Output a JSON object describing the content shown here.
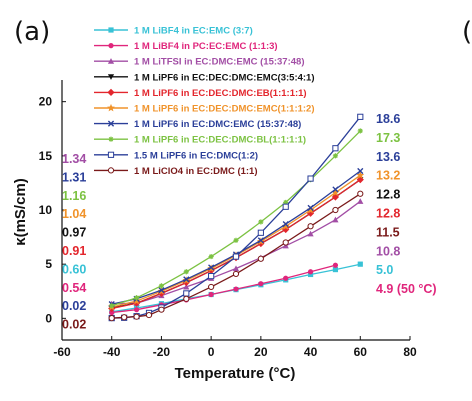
{
  "figure": {
    "panel_label": "(a)",
    "next_panel_label": "("
  },
  "chart_data": {
    "type": "line",
    "title": "",
    "xlabel": "Temperature (°C)",
    "ylabel": "κ(mS/cm)",
    "xlim": [
      -60,
      80
    ],
    "ylim": [
      -2,
      22
    ],
    "xticks": [
      -60,
      -40,
      -20,
      0,
      20,
      40,
      60,
      80
    ],
    "yticks": [
      0,
      5,
      10,
      15,
      20
    ],
    "grid": false,
    "legend_position": "top-left",
    "series": [
      {
        "name": "1 M LiBF4 in EC:EMC (3:7)",
        "color": "#38c2d6",
        "marker": "square-filled",
        "x": [
          -40,
          -30,
          -20,
          -10,
          0,
          10,
          20,
          30,
          40,
          50,
          60
        ],
        "y": [
          0.6,
          0.95,
          1.35,
          1.8,
          2.2,
          2.65,
          3.1,
          3.55,
          4.05,
          4.5,
          5.0
        ]
      },
      {
        "name": "1 M LiBF4 in PC:EC:EMC (1:1:3)",
        "color": "#e0267c",
        "marker": "circle-filled",
        "x": [
          -40,
          -30,
          -20,
          -10,
          0,
          10,
          20,
          30,
          40,
          50
        ],
        "y": [
          0.54,
          0.8,
          1.25,
          1.7,
          2.2,
          2.7,
          3.2,
          3.7,
          4.3,
          4.9
        ]
      },
      {
        "name": "1 M LiTFSI in EC:DMC:EMC (15:37:48)",
        "color": "#a24ea5",
        "marker": "triangle-filled",
        "x": [
          -40,
          -30,
          -20,
          -10,
          0,
          10,
          20,
          30,
          40,
          50,
          60
        ],
        "y": [
          1.34,
          1.4,
          2.1,
          2.9,
          3.7,
          4.6,
          5.6,
          6.7,
          7.8,
          9.1,
          10.8
        ]
      },
      {
        "name": "1 M LiPF6 in EC:DEC:DMC:EMC(3:5:4:1)",
        "color": "#111111",
        "marker": "triangle-down-filled",
        "x": [
          -40,
          -30,
          -20,
          -10,
          0,
          10,
          20,
          30,
          40,
          50,
          60
        ],
        "y": [
          0.97,
          1.4,
          2.3,
          3.3,
          4.4,
          5.6,
          6.9,
          8.2,
          9.7,
          11.2,
          12.8
        ]
      },
      {
        "name": "1 M LiPF6 in EC:DEC:DMC:EB(1:1:1:1)",
        "color": "#e3262d",
        "marker": "diamond-filled",
        "x": [
          -40,
          -30,
          -20,
          -10,
          0,
          10,
          20,
          30,
          40,
          50,
          60
        ],
        "y": [
          0.91,
          1.4,
          2.3,
          3.3,
          4.4,
          5.6,
          6.9,
          8.2,
          9.7,
          11.2,
          12.8
        ]
      },
      {
        "name": "1 M LiPF6 in EC:DEC:DMC:EMC(1:1:1:2)",
        "color": "#f0932b",
        "marker": "star",
        "x": [
          -40,
          -30,
          -20,
          -10,
          0,
          10,
          20,
          30,
          40,
          50,
          60
        ],
        "y": [
          1.04,
          1.6,
          2.5,
          3.5,
          4.6,
          5.8,
          7.1,
          8.5,
          10.0,
          11.6,
          13.2
        ]
      },
      {
        "name": "1 M LiPF6 in EC:DMC:EMC (15:37:48)",
        "color": "#2b3f99",
        "marker": "cross",
        "x": [
          -40,
          -30,
          -20,
          -10,
          0,
          10,
          20,
          30,
          40,
          50,
          60
        ],
        "y": [
          1.31,
          1.8,
          2.6,
          3.6,
          4.7,
          5.9,
          7.2,
          8.7,
          10.2,
          11.9,
          13.6
        ]
      },
      {
        "name": "1 M LiPF6 in EC:DEC:DMC:BL(1:1:1:1)",
        "color": "#7cc242",
        "marker": "x-mark",
        "x": [
          -40,
          -30,
          -20,
          -10,
          0,
          10,
          20,
          30,
          40,
          50,
          60
        ],
        "y": [
          1.16,
          1.9,
          3.0,
          4.3,
          5.7,
          7.2,
          8.9,
          10.7,
          12.8,
          15.0,
          17.3
        ]
      },
      {
        "name": "1.5 M LiPF6 in EC:DMC(1:2)",
        "color": "#2b3f99",
        "marker": "square-open",
        "x": [
          -40,
          -35,
          -30,
          -25,
          -20,
          -10,
          0,
          10,
          20,
          30,
          40,
          50,
          60
        ],
        "y": [
          0.02,
          0.05,
          0.2,
          0.5,
          1.0,
          2.3,
          3.9,
          5.7,
          7.9,
          10.3,
          12.9,
          15.7,
          18.6
        ]
      },
      {
        "name": "1 M LiClO4 in EC:DMC (1:1)",
        "color": "#7a1a1a",
        "marker": "circle-open",
        "x": [
          -40,
          -35,
          -30,
          -25,
          -20,
          -10,
          0,
          10,
          20,
          30,
          40,
          50,
          60
        ],
        "y": [
          0.02,
          0.1,
          0.15,
          0.3,
          0.8,
          1.8,
          2.9,
          4.1,
          5.5,
          7.0,
          8.5,
          10.0,
          11.5
        ]
      }
    ],
    "left_labels": [
      {
        "text": "1.34",
        "color": "#a24ea5"
      },
      {
        "text": "1.31",
        "color": "#2b3f99"
      },
      {
        "text": "1.16",
        "color": "#7cc242"
      },
      {
        "text": "1.04",
        "color": "#f0932b"
      },
      {
        "text": "0.97",
        "color": "#111111"
      },
      {
        "text": "0.91",
        "color": "#e3262d"
      },
      {
        "text": "0.60",
        "color": "#38c2d6"
      },
      {
        "text": "0.54",
        "color": "#e0267c"
      },
      {
        "text": "0.02",
        "color": "#2b3f99"
      },
      {
        "text": "0.02",
        "color": "#7a1a1a"
      }
    ],
    "right_labels": [
      {
        "text": "18.6",
        "color": "#2b3f99"
      },
      {
        "text": "17.3",
        "color": "#7cc242"
      },
      {
        "text": "13.6",
        "color": "#2b3f99"
      },
      {
        "text": "13.2",
        "color": "#f0932b"
      },
      {
        "text": "12.8",
        "color": "#111111"
      },
      {
        "text": "12.8",
        "color": "#e3262d"
      },
      {
        "text": "11.5",
        "color": "#7a1a1a"
      },
      {
        "text": "10.8",
        "color": "#a24ea5"
      },
      {
        "text": "5.0",
        "color": "#38c2d6"
      },
      {
        "text": "4.9 (50 °C)",
        "color": "#e0267c"
      }
    ]
  }
}
